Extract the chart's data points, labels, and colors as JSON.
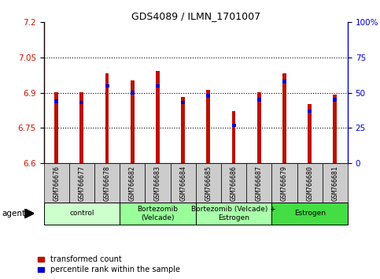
{
  "title": "GDS4089 / ILMN_1701007",
  "samples": [
    "GSM766676",
    "GSM766677",
    "GSM766678",
    "GSM766682",
    "GSM766683",
    "GSM766684",
    "GSM766685",
    "GSM766686",
    "GSM766687",
    "GSM766679",
    "GSM766680",
    "GSM766681"
  ],
  "transformed_count": [
    6.901,
    6.901,
    6.982,
    6.952,
    6.993,
    6.882,
    6.912,
    6.822,
    6.901,
    6.982,
    6.852,
    6.893
  ],
  "percentile_rank": [
    44,
    43,
    55,
    50,
    55,
    43,
    48,
    27,
    45,
    58,
    37,
    45
  ],
  "ylim_left": [
    6.6,
    7.2
  ],
  "ylim_right": [
    0,
    100
  ],
  "yticks_left": [
    6.6,
    6.75,
    6.9,
    7.05,
    7.2
  ],
  "yticks_right": [
    0,
    25,
    50,
    75,
    100
  ],
  "grid_lines": [
    6.75,
    6.9,
    7.05
  ],
  "bar_color": "#bb1100",
  "percentile_color": "#0000cc",
  "bar_width": 0.15,
  "groups": [
    {
      "label": "control",
      "indices": [
        0,
        1,
        2
      ],
      "color": "#ccffcc"
    },
    {
      "label": "Bortezomib\n(Velcade)",
      "indices": [
        3,
        4,
        5
      ],
      "color": "#99ff99"
    },
    {
      "label": "Bortezomib (Velcade) +\nEstrogen",
      "indices": [
        6,
        7,
        8
      ],
      "color": "#aaffaa"
    },
    {
      "label": "Estrogen",
      "indices": [
        9,
        10,
        11
      ],
      "color": "#44dd44"
    }
  ],
  "ybase": 6.6,
  "legend_red": "transformed count",
  "legend_blue": "percentile rank within the sample",
  "xlabel_agent": "agent",
  "right_axis_color": "#0000cc",
  "left_axis_color": "#cc1100",
  "label_area_color": "#cccccc"
}
